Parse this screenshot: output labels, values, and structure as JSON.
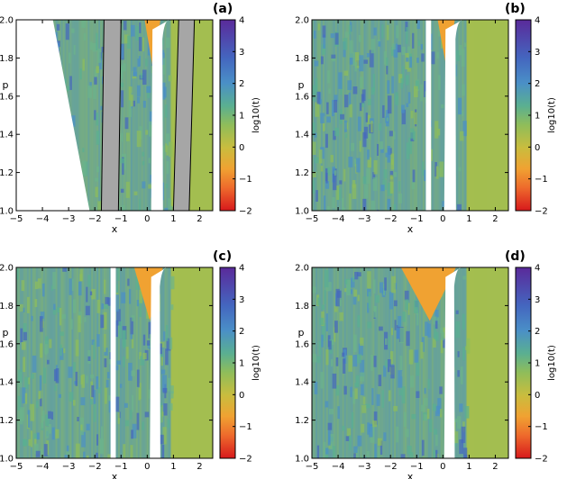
{
  "chart_data": [
    {
      "type": "heatmap",
      "panel_label": "(a)",
      "xlabel": "x",
      "ylabel": "p",
      "xlim": [
        -5,
        2.5
      ],
      "ylim": [
        1.0,
        2.0
      ],
      "xticks": [
        -5,
        -4,
        -3,
        -2,
        -1,
        0,
        1,
        2
      ],
      "yticks": [
        1.0,
        1.2,
        1.4,
        1.6,
        1.8,
        2.0
      ],
      "colorbar": {
        "label": "log10(t)",
        "range": [
          -2,
          4
        ],
        "ticks": [
          -2,
          -1,
          0,
          1,
          2,
          3,
          4
        ]
      },
      "features": {
        "white_region": "x < about -2.2 at p=1.0 widening to x < about -3.6 at p=2.0",
        "gray_bands": [
          [
            -1.75,
            -1.1
          ],
          [
            1.0,
            1.6
          ]
        ],
        "white_central_gap": [
          0.15,
          0.6
        ],
        "orange_wedge_near_top": [
          -0.1,
          0.5
        ]
      }
    },
    {
      "type": "heatmap",
      "panel_label": "(b)",
      "xlabel": "x",
      "ylabel": "p",
      "xlim": [
        -5,
        2.5
      ],
      "ylim": [
        1.0,
        2.0
      ],
      "xticks": [
        -5,
        -4,
        -3,
        -2,
        -1,
        0,
        1,
        2
      ],
      "yticks": [
        1.0,
        1.2,
        1.4,
        1.6,
        1.8,
        2.0
      ],
      "colorbar": {
        "label": "log10(t)",
        "range": [
          -2,
          4
        ],
        "ticks": [
          -2,
          -1,
          0,
          1,
          2,
          3,
          4
        ]
      },
      "features": {
        "white_central_gap": [
          0.05,
          0.5
        ],
        "white_thin_gap": [
          -0.65,
          -0.45
        ],
        "orange_wedge_near_top": [
          -0.2,
          0.45
        ]
      }
    },
    {
      "type": "heatmap",
      "panel_label": "(c)",
      "xlabel": "x",
      "ylabel": "p",
      "xlim": [
        -5,
        2.5
      ],
      "ylim": [
        1.0,
        2.0
      ],
      "xticks": [
        -5,
        -4,
        -3,
        -2,
        -1,
        0,
        1,
        2
      ],
      "yticks": [
        1.0,
        1.2,
        1.4,
        1.6,
        1.8,
        2.0
      ],
      "colorbar": {
        "label": "log10(t)",
        "range": [
          -2,
          4
        ],
        "ticks": [
          -2,
          -1,
          0,
          1,
          2,
          3,
          4
        ]
      },
      "features": {
        "white_central_gap": [
          0.1,
          0.5
        ],
        "white_thin_gap": [
          -1.4,
          -1.2
        ],
        "orange_wedge_near_top": [
          -0.5,
          0.6
        ]
      }
    },
    {
      "type": "heatmap",
      "panel_label": "(d)",
      "xlabel": "x",
      "ylabel": "p",
      "xlim": [
        -5,
        2.5
      ],
      "ylim": [
        1.0,
        2.0
      ],
      "xticks": [
        -5,
        -4,
        -3,
        -2,
        -1,
        0,
        1,
        2
      ],
      "yticks": [
        1.0,
        1.2,
        1.4,
        1.6,
        1.8,
        2.0
      ],
      "colorbar": {
        "label": "log10(t)",
        "range": [
          -2,
          4
        ],
        "ticks": [
          -2,
          -1,
          0,
          1,
          2,
          3,
          4
        ]
      },
      "features": {
        "white_central_gap": [
          0.05,
          0.45
        ],
        "orange_wedge_near_top": [
          -1.6,
          0.5
        ]
      }
    }
  ],
  "colors": {
    "colormap": [
      "#d7191c",
      "#f08a2c",
      "#e0b83a",
      "#a9c04a",
      "#6cb38a",
      "#4a8fc7",
      "#4257b8",
      "#5a2a9a"
    ],
    "gray_band": "#a6a6a6",
    "background": "#ffffff"
  }
}
